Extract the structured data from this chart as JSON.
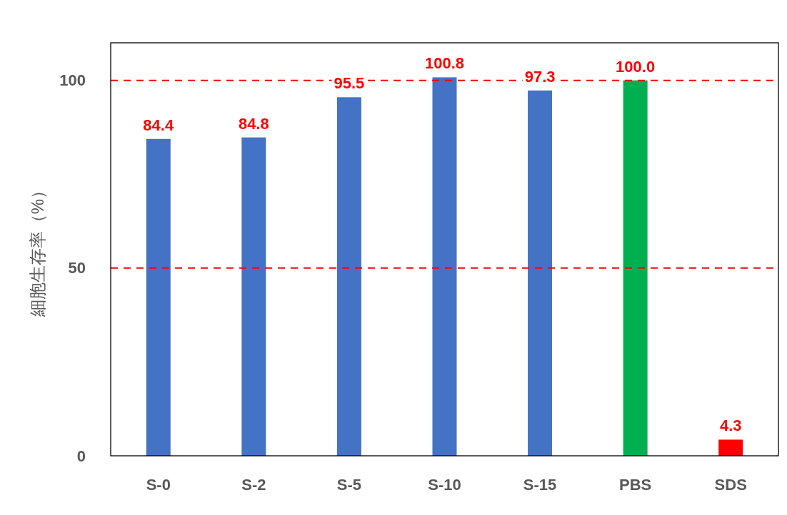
{
  "chart_data": {
    "type": "bar",
    "ylabel": "細胞生存率（%）",
    "categories": [
      "S-0",
      "S-2",
      "S-5",
      "S-10",
      "S-15",
      "PBS",
      "SDS"
    ],
    "values": [
      84.4,
      84.8,
      95.5,
      100.8,
      97.3,
      100.0,
      4.3
    ],
    "colors": [
      "#4472c4",
      "#4472c4",
      "#4472c4",
      "#4472c4",
      "#4472c4",
      "#00b050",
      "#ff0000"
    ],
    "value_labels": [
      "84.4",
      "84.8",
      "95.5",
      "100.8",
      "97.3",
      "100.0",
      "4.3"
    ],
    "ylim": [
      0,
      110
    ],
    "yticks": [
      0,
      50,
      100
    ],
    "grid": false,
    "ref_lines": [
      {
        "axis": "y",
        "value": 100,
        "color": "#ff0000",
        "line_style": "dashed"
      },
      {
        "axis": "y",
        "value": 50,
        "color": "#ff0000",
        "line_style": "dashed"
      }
    ]
  }
}
